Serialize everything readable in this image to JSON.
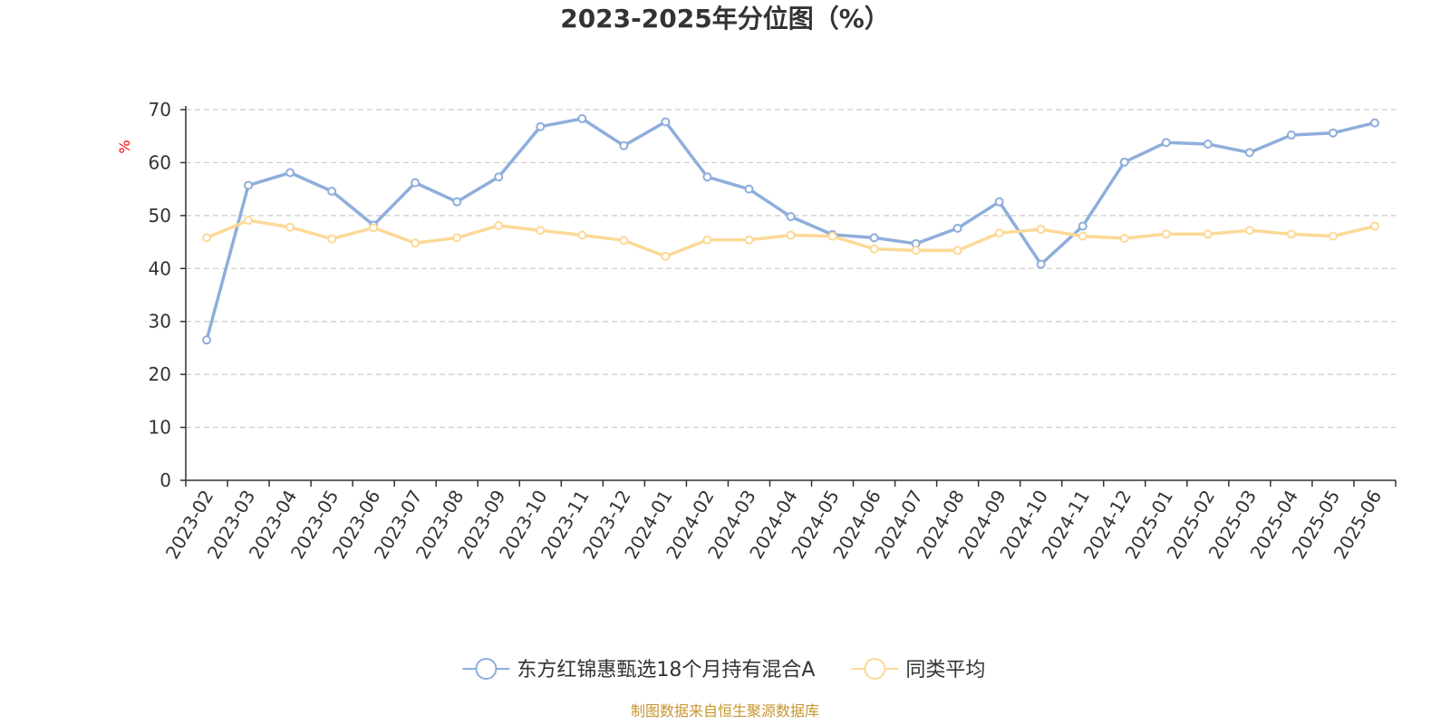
{
  "chart_data": {
    "type": "line",
    "title": "2023-2025年分位图（%）",
    "ylabel": "%",
    "ylim": [
      0,
      70
    ],
    "yticks": [
      "0",
      "10",
      "20",
      "30",
      "40",
      "50",
      "60",
      "70"
    ],
    "grid": true,
    "legend_position": "bottom",
    "categories": [
      "2023-02",
      "2023-03",
      "2023-04",
      "2023-05",
      "2023-06",
      "2023-07",
      "2023-08",
      "2023-09",
      "2023-10",
      "2023-11",
      "2023-12",
      "2024-01",
      "2024-02",
      "2024-03",
      "2024-04",
      "2024-05",
      "2024-06",
      "2024-07",
      "2024-08",
      "2024-09",
      "2024-10",
      "2024-11",
      "2024-12",
      "2025-01",
      "2025-02",
      "2025-03",
      "2025-04",
      "2025-05",
      "2025-06"
    ],
    "series": [
      {
        "name": "东方红锦惠甄选18个月持有混合A",
        "color": "#8eaedb",
        "values": [
          26.5,
          55.7,
          58.1,
          54.6,
          48.2,
          56.2,
          52.6,
          57.3,
          66.8,
          68.3,
          63.2,
          67.7,
          57.3,
          55.0,
          49.8,
          46.4,
          45.8,
          44.7,
          47.6,
          52.6,
          40.8,
          48.0,
          60.1,
          63.8,
          63.5,
          61.9,
          65.2,
          65.6,
          67.5
        ]
      },
      {
        "name": "同类平均",
        "color": "#fcd998",
        "values": [
          45.8,
          49.1,
          47.8,
          45.6,
          47.7,
          44.8,
          45.8,
          48.1,
          47.2,
          46.3,
          45.3,
          42.3,
          45.4,
          45.4,
          46.3,
          46.1,
          43.7,
          43.4,
          43.4,
          46.7,
          47.4,
          46.1,
          45.7,
          46.5,
          46.5,
          47.2,
          46.5,
          46.1,
          48.0
        ]
      }
    ]
  },
  "footer": {
    "source": "制图数据来自恒生聚源数据库",
    "source_color": "#c8962e"
  }
}
